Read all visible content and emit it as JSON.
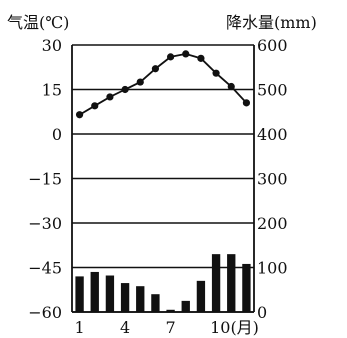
{
  "chart_data": {
    "type": "bar+line",
    "title": "",
    "left_axis": {
      "label": "气温(℃)",
      "ticks": [
        30,
        15,
        0,
        -15,
        -30,
        -45,
        -60
      ],
      "ylim": [
        -60,
        30
      ]
    },
    "right_axis": {
      "label": "降水量(mm)",
      "ticks": [
        600,
        500,
        400,
        300,
        200,
        100,
        0
      ],
      "ylim": [
        0,
        600
      ]
    },
    "x_axis": {
      "months": [
        1,
        2,
        3,
        4,
        5,
        6,
        7,
        8,
        9,
        10,
        11,
        12
      ],
      "tick_labels": [
        "1",
        "4",
        "7",
        "10(月)"
      ],
      "tick_months": [
        1,
        4,
        7,
        10
      ]
    },
    "grid": "horizontal",
    "series": [
      {
        "kind": "line",
        "axis": "left",
        "values": [
          6.5,
          9.5,
          12.5,
          15,
          17.5,
          22,
          26,
          27,
          25.5,
          20.5,
          16,
          10.5
        ]
      },
      {
        "kind": "bar",
        "axis": "right",
        "values": [
          80,
          90,
          82,
          65,
          58,
          40,
          5,
          25,
          70,
          130,
          130,
          108
        ]
      }
    ]
  },
  "text": {
    "left_title": "气温(℃)",
    "right_title": "降水量(mm)",
    "left_ticks": [
      "30",
      "15",
      "0",
      "−15",
      "−30",
      "−45",
      "−60"
    ],
    "right_ticks": [
      "600",
      "500",
      "400",
      "300",
      "200",
      "100",
      "0"
    ],
    "month_labels": [
      "1",
      "4",
      "7",
      "10(月)"
    ]
  }
}
